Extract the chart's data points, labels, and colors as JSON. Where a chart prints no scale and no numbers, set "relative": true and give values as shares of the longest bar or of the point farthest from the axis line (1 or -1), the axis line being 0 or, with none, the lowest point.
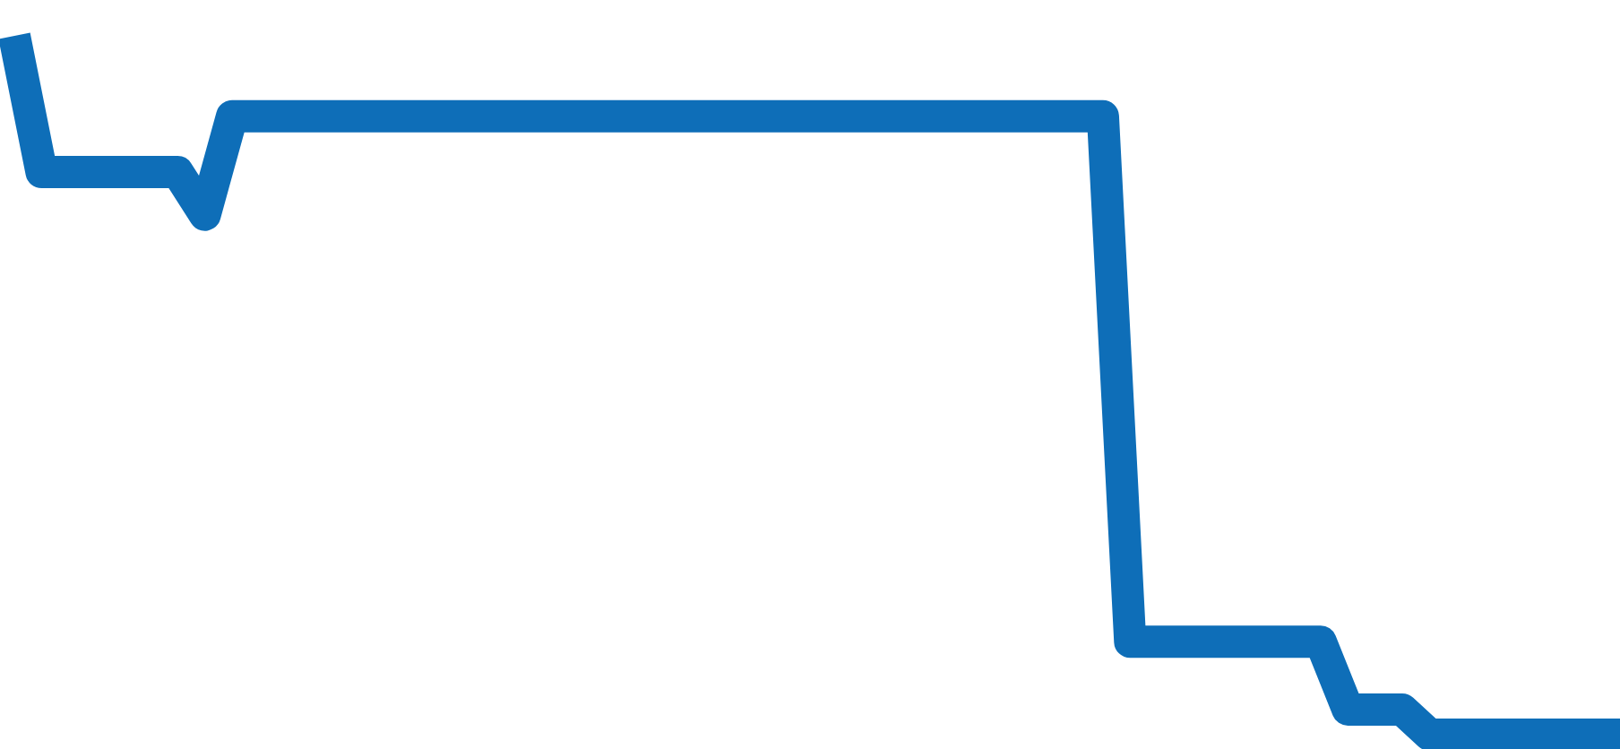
{
  "chart_data": {
    "type": "line",
    "relative": true,
    "categories": [
      null,
      null,
      null,
      null,
      null,
      null,
      null,
      null,
      null,
      null,
      null,
      null,
      null,
      null,
      null,
      null,
      null,
      null,
      null,
      null,
      null,
      null,
      null,
      null,
      null,
      null,
      null,
      null,
      null,
      null,
      null,
      null,
      null,
      null,
      null,
      null,
      null,
      null,
      null,
      null,
      null,
      null,
      null,
      null,
      null,
      null,
      null,
      null,
      null,
      null,
      null,
      null,
      null,
      null,
      null,
      null,
      null,
      null,
      null,
      null
    ],
    "series": [
      {
        "color": "#0e6eb8",
        "values": [
          1,
          0.805,
          0.805,
          0.805,
          0.805,
          0.805,
          0.805,
          0.744,
          0.885,
          0.885,
          0.885,
          0.885,
          0.885,
          0.885,
          0.885,
          0.885,
          0.885,
          0.885,
          0.885,
          0.885,
          0.885,
          0.885,
          0.885,
          0.885,
          0.885,
          0.885,
          0.885,
          0.885,
          0.885,
          0.885,
          0.885,
          0.885,
          0.885,
          0.885,
          0.885,
          0.885,
          0.885,
          0.885,
          0.885,
          0.885,
          0.885,
          0.133,
          0.133,
          0.133,
          0.133,
          0.133,
          0.133,
          0.133,
          0.133,
          0.036,
          0.036,
          0.036,
          0,
          0,
          0,
          0,
          0,
          0,
          0,
          0
        ]
      }
    ],
    "marker": "none",
    "line_style": "solid"
  }
}
